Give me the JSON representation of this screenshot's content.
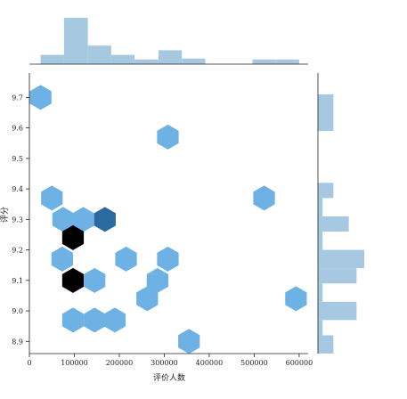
{
  "chart_data": {
    "type": "hexbin",
    "xlabel": "评价人数",
    "ylabel": "评分",
    "xlim": [
      0,
      620000
    ],
    "ylim": [
      8.86,
      9.78
    ],
    "x_ticks": [
      0,
      100000,
      200000,
      300000,
      400000,
      500000,
      600000
    ],
    "x_tick_labels": [
      "0",
      "100000",
      "200000",
      "300000",
      "400000",
      "500000",
      "600000"
    ],
    "y_ticks": [
      8.9,
      9.0,
      9.1,
      9.2,
      9.3,
      9.4,
      9.5,
      9.6,
      9.7
    ],
    "y_tick_labels": [
      "8.9",
      "9.0",
      "9.1",
      "9.2",
      "9.3",
      "9.4",
      "9.5",
      "9.6",
      "9.7"
    ],
    "hex_bins": [
      {
        "x": 25000,
        "y": 9.7,
        "count": 1
      },
      {
        "x": 308000,
        "y": 9.57,
        "count": 1
      },
      {
        "x": 50000,
        "y": 9.37,
        "count": 1
      },
      {
        "x": 522000,
        "y": 9.37,
        "count": 1
      },
      {
        "x": 75000,
        "y": 9.3,
        "count": 1
      },
      {
        "x": 120000,
        "y": 9.3,
        "count": 1
      },
      {
        "x": 168000,
        "y": 9.3,
        "count": 2
      },
      {
        "x": 97000,
        "y": 9.24,
        "count": 3
      },
      {
        "x": 73000,
        "y": 9.17,
        "count": 1
      },
      {
        "x": 215000,
        "y": 9.17,
        "count": 1
      },
      {
        "x": 308000,
        "y": 9.17,
        "count": 1
      },
      {
        "x": 97000,
        "y": 9.1,
        "count": 3
      },
      {
        "x": 145000,
        "y": 9.1,
        "count": 1
      },
      {
        "x": 285000,
        "y": 9.1,
        "count": 1
      },
      {
        "x": 262000,
        "y": 9.04,
        "count": 1
      },
      {
        "x": 593000,
        "y": 9.04,
        "count": 1
      },
      {
        "x": 97000,
        "y": 8.97,
        "count": 1
      },
      {
        "x": 145000,
        "y": 8.97,
        "count": 1
      },
      {
        "x": 190000,
        "y": 8.97,
        "count": 1
      },
      {
        "x": 355000,
        "y": 8.9,
        "count": 1
      }
    ],
    "hex_colors": {
      "1": "#6eb1e4",
      "2": "#2a6aa0",
      "3": "#000000"
    },
    "x_hist": {
      "bin_edges": [
        25000,
        77000,
        130000,
        182000,
        234000,
        287000,
        339000,
        391000,
        443000,
        496000,
        548000,
        600000
      ],
      "counts": [
        1,
        5,
        2,
        1,
        0.5,
        1.5,
        0.6,
        0,
        0,
        0.5,
        0.5
      ]
    },
    "y_hist": {
      "bin_edges": [
        8.86,
        8.92,
        8.97,
        9.03,
        9.09,
        9.14,
        9.2,
        9.26,
        9.31,
        9.37,
        9.42,
        9.48,
        9.54,
        9.59,
        9.65,
        9.71
      ],
      "counts": [
        1,
        0.3,
        2.5,
        0.3,
        2.5,
        3,
        0.3,
        2,
        0.3,
        1,
        0,
        0,
        0,
        1,
        1
      ]
    },
    "hist_color": "#a6c8e0"
  }
}
